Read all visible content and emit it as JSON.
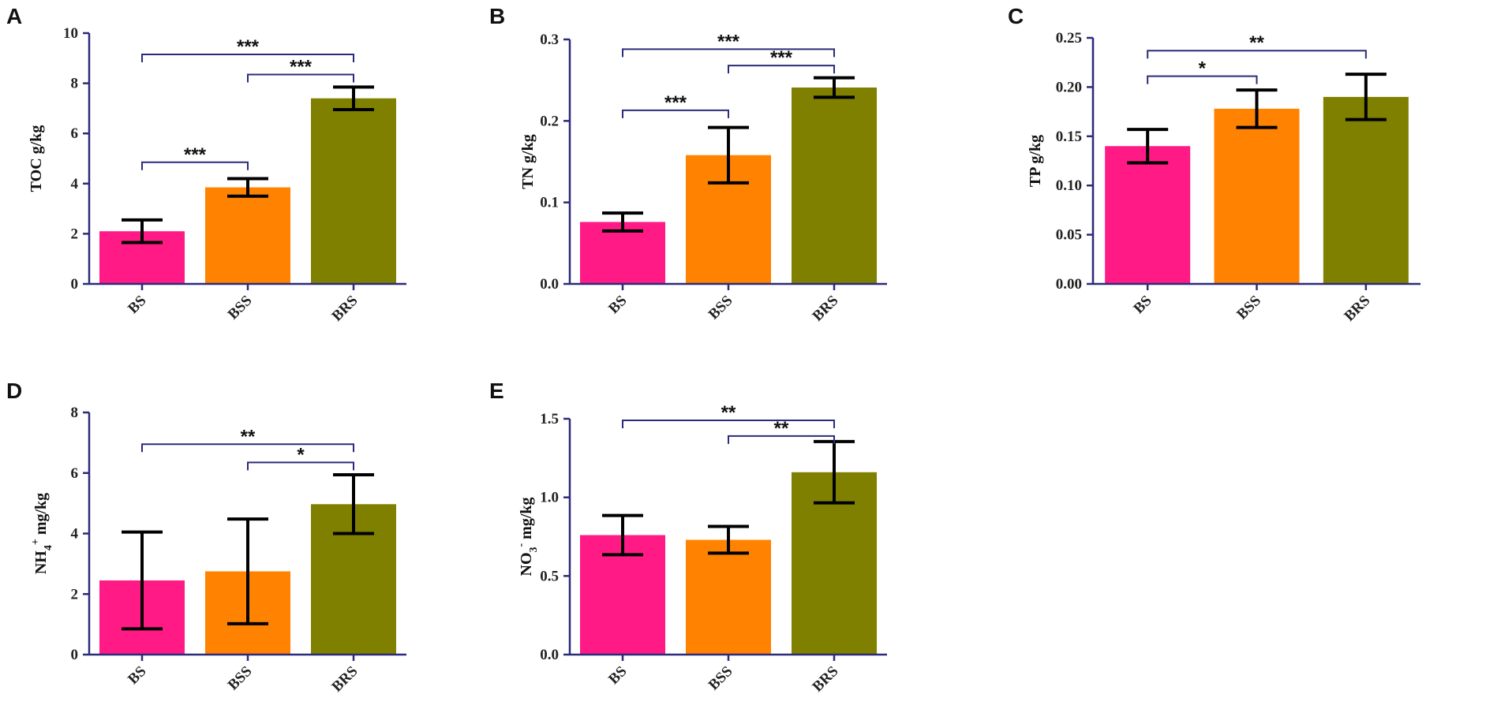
{
  "colors": {
    "BS": "#ff1a85",
    "BSS": "#ff8200",
    "BRS": "#808000",
    "axis": "#2b2b7a"
  },
  "chart_data": [
    {
      "id": "A",
      "letter": "A",
      "type": "bar",
      "categories": [
        "BS",
        "BSS",
        "BRS"
      ],
      "values": [
        2.1,
        3.85,
        7.4
      ],
      "errors": [
        0.45,
        0.35,
        0.45
      ],
      "ylim": [
        0,
        10
      ],
      "yticks": [
        0,
        2,
        4,
        6,
        8,
        10
      ],
      "ytick_labels": [
        "0",
        "2",
        "4",
        "6",
        "8",
        "10"
      ],
      "ylabel": "TOC g/kg",
      "significance": [
        {
          "from": 0,
          "to": 2,
          "y": 9.15,
          "label": "***"
        },
        {
          "from": 1,
          "to": 2,
          "y": 8.35,
          "label": "***"
        },
        {
          "from": 0,
          "to": 1,
          "y": 4.85,
          "label": "***"
        }
      ]
    },
    {
      "id": "B",
      "letter": "B",
      "type": "bar",
      "categories": [
        "BS",
        "BSS",
        "BRS"
      ],
      "values": [
        0.076,
        0.158,
        0.241
      ],
      "errors": [
        0.011,
        0.034,
        0.012
      ],
      "ylim": [
        0,
        0.3
      ],
      "yticks": [
        0,
        0.1,
        0.2,
        0.3
      ],
      "ytick_labels": [
        "0.0",
        "0.1",
        "0.2",
        "0.3"
      ],
      "ylabel": "TN g/kg",
      "significance": [
        {
          "from": 0,
          "to": 2,
          "y": 0.288,
          "label": "***"
        },
        {
          "from": 1,
          "to": 2,
          "y": 0.268,
          "label": "***"
        },
        {
          "from": 0,
          "to": 1,
          "y": 0.213,
          "label": "***"
        }
      ]
    },
    {
      "id": "C",
      "letter": "C",
      "type": "bar",
      "categories": [
        "BS",
        "BSS",
        "BRS"
      ],
      "values": [
        0.14,
        0.178,
        0.19
      ],
      "errors": [
        0.017,
        0.019,
        0.023
      ],
      "ylim": [
        0,
        0.25
      ],
      "yticks": [
        0,
        0.05,
        0.1,
        0.15,
        0.2,
        0.25
      ],
      "ytick_labels": [
        "0.00",
        "0.05",
        "0.10",
        "0.15",
        "0.20",
        "0.25"
      ],
      "ylabel": "TP g/kg",
      "significance": [
        {
          "from": 0,
          "to": 2,
          "y": 0.237,
          "label": "**"
        },
        {
          "from": 0,
          "to": 1,
          "y": 0.211,
          "label": "*"
        }
      ]
    },
    {
      "id": "D",
      "letter": "D",
      "type": "bar",
      "categories": [
        "BS",
        "BSS",
        "BRS"
      ],
      "values": [
        2.45,
        2.75,
        4.97
      ],
      "errors": [
        1.6,
        1.73,
        0.97
      ],
      "ylim": [
        0,
        8
      ],
      "yticks": [
        0,
        2,
        4,
        6,
        8
      ],
      "ytick_labels": [
        "0",
        "2",
        "4",
        "6",
        "8"
      ],
      "ylabel": "NH",
      "ylabel_sub": "4",
      "ylabel_sup": "+",
      "ylabel_unit": " mg/kg",
      "significance": [
        {
          "from": 0,
          "to": 2,
          "y": 6.95,
          "label": "**"
        },
        {
          "from": 1,
          "to": 2,
          "y": 6.35,
          "label": "*"
        }
      ]
    },
    {
      "id": "E",
      "letter": "E",
      "type": "bar",
      "categories": [
        "BS",
        "BSS",
        "BRS"
      ],
      "values": [
        0.76,
        0.73,
        1.16
      ],
      "errors": [
        0.125,
        0.085,
        0.195
      ],
      "ylim": [
        0,
        1.5
      ],
      "yticks": [
        0,
        0.5,
        1.0,
        1.5
      ],
      "ytick_labels": [
        "0.0",
        "0.5",
        "1.0",
        "1.5"
      ],
      "ylabel": "NO",
      "ylabel_sub": "3",
      "ylabel_sup": "-",
      "ylabel_unit": " mg/kg",
      "significance": [
        {
          "from": 0,
          "to": 2,
          "y": 1.49,
          "label": "**"
        },
        {
          "from": 1,
          "to": 2,
          "y": 1.39,
          "label": "**"
        }
      ]
    }
  ]
}
